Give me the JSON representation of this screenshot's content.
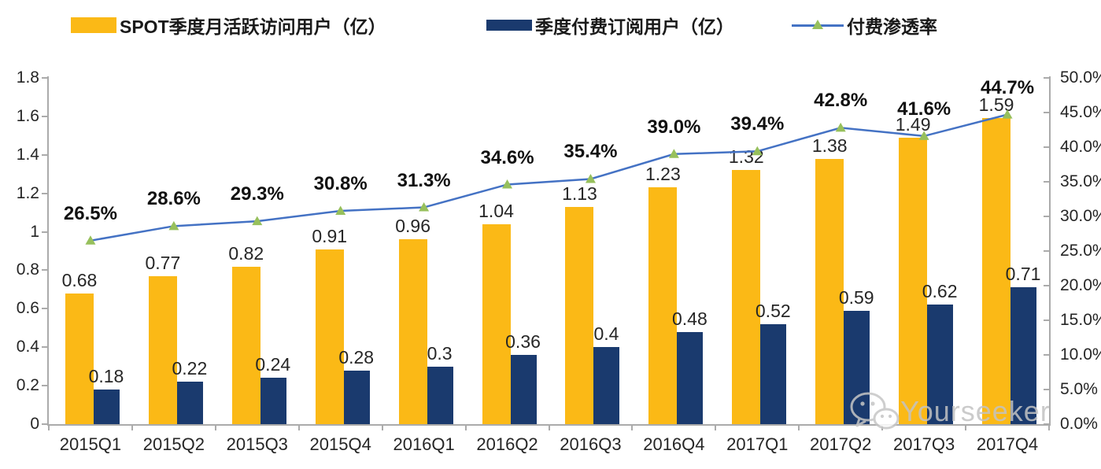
{
  "watermark": {
    "text": "Yourseeker",
    "icon": "wechat-icon"
  },
  "colors": {
    "mau_bar": "#FBB916",
    "subs_bar": "#1A3A6E",
    "line": "#4472C4",
    "marker": "#97C05C",
    "axis": "#ABABAB",
    "watermark": "#C3C3C3"
  },
  "chart_data": {
    "type": "bar+line",
    "title": "",
    "legend_position": "top",
    "grid": false,
    "categories": [
      "2015Q1",
      "2015Q2",
      "2015Q3",
      "2015Q4",
      "2016Q1",
      "2016Q2",
      "2016Q3",
      "2016Q4",
      "2017Q1",
      "2017Q2",
      "2017Q3",
      "2017Q4"
    ],
    "series": [
      {
        "name": "SPOT季度月活跃访问用户（亿）",
        "type": "bar",
        "axis": "left",
        "color": "#FBB916",
        "values": [
          0.68,
          0.77,
          0.82,
          0.91,
          0.96,
          1.04,
          1.13,
          1.23,
          1.32,
          1.38,
          1.49,
          1.59
        ],
        "labels": [
          "0.68",
          "0.77",
          "0.82",
          "0.91",
          "0.96",
          "1.04",
          "1.13",
          "1.23",
          "1.32",
          "1.38",
          "1.49",
          "1.59"
        ]
      },
      {
        "name": "季度付费订阅用户（亿）",
        "type": "bar",
        "axis": "left",
        "color": "#1A3A6E",
        "values": [
          0.18,
          0.22,
          0.24,
          0.28,
          0.3,
          0.36,
          0.4,
          0.48,
          0.52,
          0.59,
          0.62,
          0.71
        ],
        "labels": [
          "0.18",
          "0.22",
          "0.24",
          "0.28",
          "0.3",
          "0.36",
          "0.4",
          "0.48",
          "0.52",
          "0.59",
          "0.62",
          "0.71"
        ]
      },
      {
        "name": "付费渗透率",
        "type": "line",
        "axis": "right",
        "color": "#4472C4",
        "marker": "triangle",
        "marker_color": "#97C05C",
        "values": [
          26.5,
          28.6,
          29.3,
          30.8,
          31.3,
          34.6,
          35.4,
          39.0,
          39.4,
          42.8,
          41.6,
          44.7
        ],
        "labels": [
          "26.5%",
          "28.6%",
          "29.3%",
          "30.8%",
          "31.3%",
          "34.6%",
          "35.4%",
          "39.0%",
          "39.4%",
          "42.8%",
          "41.6%",
          "44.7%"
        ]
      }
    ],
    "left_axis": {
      "min": 0,
      "max": 1.8,
      "step": 0.2,
      "ticks": [
        "0",
        "0.2",
        "0.4",
        "0.6",
        "0.8",
        "1",
        "1.2",
        "1.4",
        "1.6",
        "1.8"
      ]
    },
    "right_axis": {
      "min": 0,
      "max": 50,
      "step": 5,
      "ticks": [
        "0.0%",
        "5.0%",
        "10.0%",
        "15.0%",
        "20.0%",
        "25.0%",
        "30.0%",
        "35.0%",
        "40.0%",
        "45.0%",
        "50.0%"
      ]
    }
  }
}
